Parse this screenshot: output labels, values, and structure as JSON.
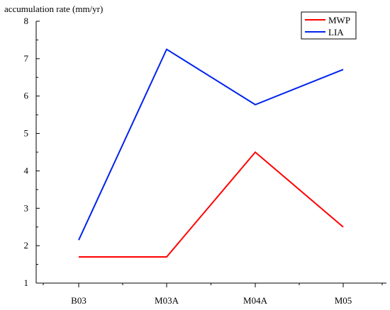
{
  "chart_data": {
    "type": "line",
    "title": "",
    "xlabel": "",
    "ylabel": "accumulation rate (mm/yr)",
    "categories": [
      "B03",
      "M03A",
      "M04A",
      "M05"
    ],
    "ylim": [
      1,
      8
    ],
    "yticks": [
      1,
      2,
      3,
      4,
      5,
      6,
      7,
      8
    ],
    "grid": false,
    "legend_position": "top-right",
    "series": [
      {
        "name": "MWP",
        "color": "#ff0000",
        "values": [
          1.7,
          1.7,
          4.5,
          2.5
        ]
      },
      {
        "name": "LIA",
        "color": "#0022ee",
        "values": [
          2.15,
          7.25,
          5.77,
          6.71
        ]
      }
    ]
  }
}
